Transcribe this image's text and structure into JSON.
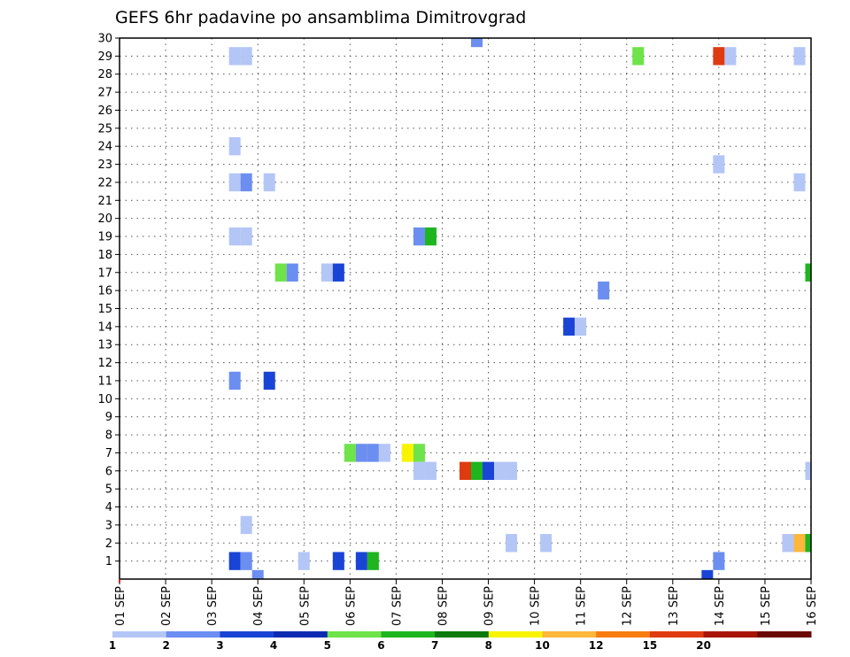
{
  "chart_data": {
    "type": "heatmap",
    "title": "GEFS 6hr padavine po ansamblima Dimitrovgrad",
    "xlabel": "",
    "ylabel": "",
    "x_ticks": [
      "01 SEP",
      "02 SEP",
      "03 SEP",
      "04 SEP",
      "05 SEP",
      "06 SEP",
      "07 SEP",
      "08 SEP",
      "09 SEP",
      "10 SEP",
      "11 SEP",
      "12 SEP",
      "13 SEP",
      "14 SEP",
      "15 SEP",
      "16 SEP"
    ],
    "y_ticks": [
      "1",
      "2",
      "3",
      "4",
      "5",
      "6",
      "7",
      "8",
      "9",
      "10",
      "11",
      "12",
      "13",
      "14",
      "15",
      "16",
      "17",
      "18",
      "19",
      "20",
      "21",
      "22",
      "23",
      "24",
      "25",
      "26",
      "27",
      "28",
      "29",
      "30"
    ],
    "x_range_steps": [
      0,
      60
    ],
    "y_range_members": [
      0,
      30
    ],
    "grid": true,
    "grid_style": "dotted",
    "colorbar": {
      "position": "bottom",
      "labels": [
        "1",
        "2",
        "3",
        "4",
        "5",
        "6",
        "7",
        "8",
        "10",
        "12",
        "15",
        "20"
      ],
      "colors": [
        "#b4c6f6",
        "#6b8ef0",
        "#1a44d6",
        "#0b2cb0",
        "#6ee34a",
        "#1fb51f",
        "#0b7a0b",
        "#f8f400",
        "#fcb73c",
        "#f87d10",
        "#e03a10",
        "#a8160a",
        "#6b0a05"
      ]
    },
    "cells": [
      {
        "step": 52,
        "member": 29,
        "cls": 11
      },
      {
        "step": 53,
        "member": 29,
        "cls": 1
      },
      {
        "step": 59,
        "member": 29,
        "cls": 1
      },
      {
        "step": 45,
        "member": 29,
        "cls": 5
      },
      {
        "step": 10,
        "member": 29,
        "cls": 1
      },
      {
        "step": 11,
        "member": 29,
        "cls": 1
      },
      {
        "step": 31,
        "member": 30,
        "cls": 2
      },
      {
        "step": 10,
        "member": 24,
        "cls": 1
      },
      {
        "step": 52,
        "member": 23,
        "cls": 1
      },
      {
        "step": 10,
        "member": 22,
        "cls": 1
      },
      {
        "step": 11,
        "member": 22,
        "cls": 2
      },
      {
        "step": 13,
        "member": 22,
        "cls": 1
      },
      {
        "step": 59,
        "member": 22,
        "cls": 1
      },
      {
        "step": 10,
        "member": 19,
        "cls": 1
      },
      {
        "step": 11,
        "member": 19,
        "cls": 1
      },
      {
        "step": 26,
        "member": 19,
        "cls": 2
      },
      {
        "step": 27,
        "member": 19,
        "cls": 6
      },
      {
        "step": 14,
        "member": 17,
        "cls": 5
      },
      {
        "step": 15,
        "member": 17,
        "cls": 2
      },
      {
        "step": 18,
        "member": 17,
        "cls": 1
      },
      {
        "step": 19,
        "member": 17,
        "cls": 3
      },
      {
        "step": 60,
        "member": 17,
        "cls": 6
      },
      {
        "step": 42,
        "member": 16,
        "cls": 2
      },
      {
        "step": 39,
        "member": 14,
        "cls": 3
      },
      {
        "step": 40,
        "member": 14,
        "cls": 1
      },
      {
        "step": 10,
        "member": 11,
        "cls": 2
      },
      {
        "step": 13,
        "member": 11,
        "cls": 3
      },
      {
        "step": 20,
        "member": 7,
        "cls": 5
      },
      {
        "step": 21,
        "member": 7,
        "cls": 2
      },
      {
        "step": 22,
        "member": 7,
        "cls": 2
      },
      {
        "step": 23,
        "member": 7,
        "cls": 1
      },
      {
        "step": 25,
        "member": 7,
        "cls": 8
      },
      {
        "step": 26,
        "member": 7,
        "cls": 5
      },
      {
        "step": 26,
        "member": 6,
        "cls": 1
      },
      {
        "step": 27,
        "member": 6,
        "cls": 1
      },
      {
        "step": 30,
        "member": 6,
        "cls": 11
      },
      {
        "step": 31,
        "member": 6,
        "cls": 6
      },
      {
        "step": 32,
        "member": 6,
        "cls": 3
      },
      {
        "step": 33,
        "member": 6,
        "cls": 1
      },
      {
        "step": 34,
        "member": 6,
        "cls": 1
      },
      {
        "step": 60,
        "member": 6,
        "cls": 1
      },
      {
        "step": 11,
        "member": 3,
        "cls": 1
      },
      {
        "step": 34,
        "member": 2,
        "cls": 1
      },
      {
        "step": 37,
        "member": 2,
        "cls": 1
      },
      {
        "step": 58,
        "member": 2,
        "cls": 1
      },
      {
        "step": 59,
        "member": 2,
        "cls": 9
      },
      {
        "step": 60,
        "member": 2,
        "cls": 6
      },
      {
        "step": 10,
        "member": 1,
        "cls": 3
      },
      {
        "step": 11,
        "member": 1,
        "cls": 2
      },
      {
        "step": 16,
        "member": 1,
        "cls": 1
      },
      {
        "step": 19,
        "member": 1,
        "cls": 3
      },
      {
        "step": 21,
        "member": 1,
        "cls": 3
      },
      {
        "step": 22,
        "member": 1,
        "cls": 6
      },
      {
        "step": 52,
        "member": 1,
        "cls": 2
      },
      {
        "step": 12,
        "member": 0,
        "cls": 2
      },
      {
        "step": 51,
        "member": 0,
        "cls": 3
      }
    ]
  }
}
